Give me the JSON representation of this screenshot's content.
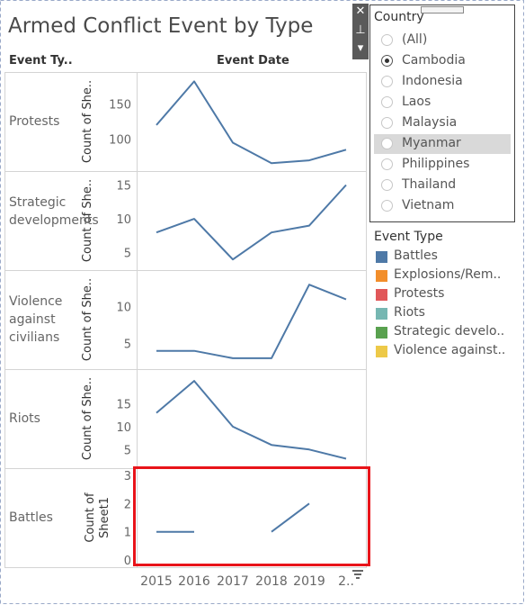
{
  "title": "Armed Conflict Event by Type",
  "header": {
    "rows_label": "Event Ty..",
    "cols_label": "Event Date"
  },
  "toolbar": {
    "close": "✕",
    "pin": "⊥",
    "menu": "▾"
  },
  "country_filter": {
    "title": "Country",
    "selected": "Cambodia",
    "highlighted": "Myanmar",
    "options": [
      "(All)",
      "Cambodia",
      "Indonesia",
      "Laos",
      "Malaysia",
      "Myanmar",
      "Philippines",
      "Thailand",
      "Vietnam"
    ]
  },
  "legend": {
    "title": "Event Type",
    "items": [
      {
        "label": "Battles",
        "color": "#4e79a7"
      },
      {
        "label": "Explosions/Rem..",
        "color": "#f28e2b"
      },
      {
        "label": "Protests",
        "color": "#e15759"
      },
      {
        "label": "Riots",
        "color": "#76b7b2"
      },
      {
        "label": "Strategic develo..",
        "color": "#59a14f"
      },
      {
        "label": "Violence against..",
        "color": "#edc948"
      }
    ]
  },
  "chart_data": {
    "type": "line",
    "x": [
      "2015",
      "2016",
      "2017",
      "2018",
      "2019",
      "2.."
    ],
    "line_color": "#4e79a7",
    "panels": [
      {
        "label": "Protests",
        "y_title": "Count of She..",
        "yticks": [
          100,
          150
        ],
        "ylim": [
          65,
          185
        ],
        "values": [
          120,
          182,
          95,
          66,
          70,
          85
        ]
      },
      {
        "label": "Strategic developments",
        "y_title": "Count of She..",
        "yticks": [
          5,
          10,
          15
        ],
        "ylim": [
          3.5,
          16
        ],
        "values": [
          8,
          10,
          4,
          8,
          9,
          15
        ]
      },
      {
        "label": "Violence against civilians",
        "y_title": "Count of She..",
        "yticks": [
          5,
          10
        ],
        "ylim": [
          2.5,
          14
        ],
        "values": [
          4,
          4,
          3,
          3,
          13,
          11
        ]
      },
      {
        "label": "Riots",
        "y_title": "Count of She..",
        "yticks": [
          5,
          10,
          15
        ],
        "ylim": [
          2.5,
          21
        ],
        "values": [
          13,
          20,
          10,
          6,
          5,
          3
        ]
      },
      {
        "label": "Battles",
        "y_title": "Count of Sheet1",
        "yticks": [
          0,
          1,
          2,
          3
        ],
        "ylim": [
          0,
          3
        ],
        "values": [
          1,
          1,
          null,
          1,
          2,
          null
        ]
      }
    ]
  }
}
